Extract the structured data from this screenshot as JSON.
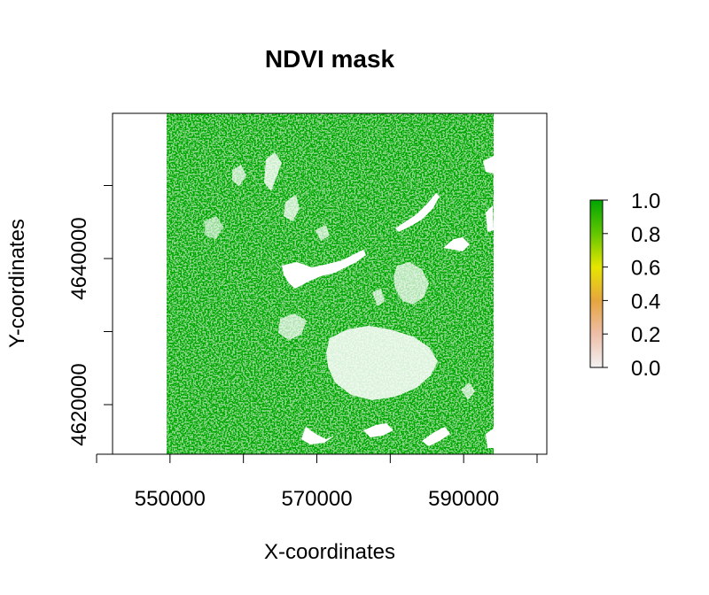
{
  "chart_data": {
    "type": "heatmap",
    "title": "NDVI mask",
    "xlabel": "X-coordinates",
    "ylabel": "Y-coordinates",
    "xlim": [
      540000,
      600000
    ],
    "ylim": [
      4610000,
      4655000
    ],
    "x_ticks": [
      540000,
      550000,
      560000,
      570000,
      580000,
      590000,
      600000
    ],
    "x_tick_labels": [
      "550000",
      "570000",
      "590000"
    ],
    "x_tick_label_values": [
      550000,
      570000,
      590000
    ],
    "y_ticks": [
      4620000,
      4630000,
      4640000,
      4650000
    ],
    "y_tick_labels": [
      "4620000",
      "4640000"
    ],
    "y_tick_label_values": [
      4620000,
      4640000
    ],
    "raster_extent": {
      "xmin": 547800,
      "xmax": 592300,
      "ymin": 4610000,
      "ymax": 4656000
    },
    "mask_color": "#00A600",
    "background_color": "#FFFFFF",
    "legend": {
      "title": "",
      "range": [
        0.0,
        1.0
      ],
      "ticks": [
        "0.0",
        "0.2",
        "0.4",
        "0.6",
        "0.8",
        "1.0"
      ],
      "tick_values": [
        0.0,
        0.2,
        0.4,
        0.6,
        0.8,
        1.0
      ],
      "colors": [
        "#F2F2F2",
        "#EEBEA8",
        "#E6A53F",
        "#E6E600",
        "#63C600",
        "#00A600"
      ],
      "position": "right"
    }
  }
}
